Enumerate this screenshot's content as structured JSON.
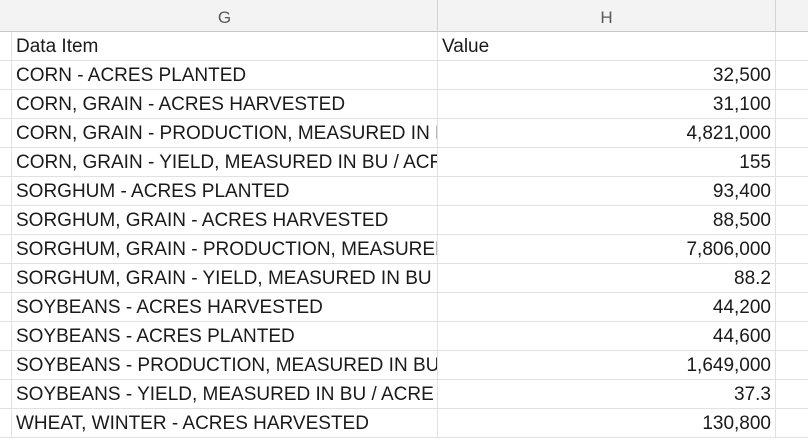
{
  "columns": {
    "g": "G",
    "h": "H"
  },
  "header_row": {
    "data_item": "Data Item",
    "value": "Value"
  },
  "rows": [
    {
      "item": "CORN - ACRES PLANTED",
      "value": "32,500"
    },
    {
      "item": "CORN, GRAIN - ACRES HARVESTED",
      "value": "31,100"
    },
    {
      "item": "CORN, GRAIN - PRODUCTION, MEASURED IN BU",
      "value": "4,821,000"
    },
    {
      "item": "CORN, GRAIN - YIELD, MEASURED IN BU / ACRE",
      "value": "155"
    },
    {
      "item": "SORGHUM - ACRES PLANTED",
      "value": "93,400"
    },
    {
      "item": "SORGHUM, GRAIN - ACRES HARVESTED",
      "value": "88,500"
    },
    {
      "item": "SORGHUM, GRAIN - PRODUCTION, MEASURED IN BU",
      "value": "7,806,000"
    },
    {
      "item": "SORGHUM, GRAIN - YIELD, MEASURED IN BU / ACRE",
      "value": "88.2"
    },
    {
      "item": "SOYBEANS - ACRES HARVESTED",
      "value": "44,200"
    },
    {
      "item": "SOYBEANS - ACRES PLANTED",
      "value": "44,600"
    },
    {
      "item": "SOYBEANS - PRODUCTION, MEASURED IN BU",
      "value": "1,649,000"
    },
    {
      "item": "SOYBEANS - YIELD, MEASURED IN BU / ACRE",
      "value": "37.3"
    },
    {
      "item": "WHEAT, WINTER - ACRES HARVESTED",
      "value": "130,800"
    }
  ]
}
